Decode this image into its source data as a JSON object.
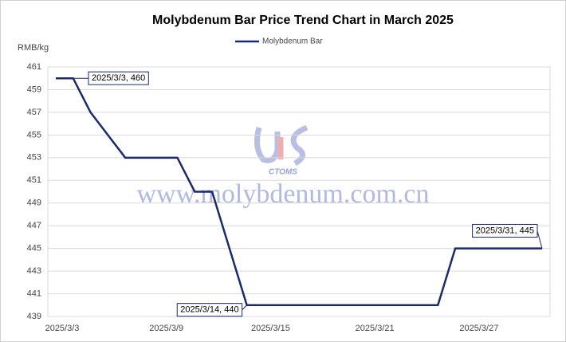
{
  "chart_data": {
    "type": "line",
    "title": "Molybdenum Bar Price Trend Chart in March 2025",
    "y_axis_label": "RMB/kg",
    "watermark": "www.molybdenum.com.cn",
    "logo_text": "CTOMS",
    "categories": [
      "2025/3/3",
      null,
      null,
      null,
      null,
      null,
      "2025/3/9",
      null,
      null,
      null,
      null,
      null,
      "2025/3/15",
      null,
      null,
      null,
      null,
      null,
      "2025/3/21",
      null,
      null,
      null,
      null,
      null,
      "2025/3/27",
      null,
      null,
      null,
      null
    ],
    "series": [
      {
        "name": "Molybdenum Bar",
        "color": "#1b2a6b",
        "values": [
          460,
          460,
          457,
          455,
          453,
          453,
          453,
          453,
          450,
          450,
          445,
          440,
          440,
          440,
          440,
          440,
          440,
          440,
          440,
          440,
          440,
          440,
          440,
          445,
          445,
          445,
          445,
          445,
          445
        ],
        "value_labels": [
          "2025/3/3, 460",
          null,
          null,
          null,
          null,
          null,
          null,
          null,
          null,
          null,
          null,
          "2025/3/14, 440",
          null,
          null,
          null,
          null,
          null,
          null,
          null,
          null,
          null,
          null,
          null,
          null,
          null,
          null,
          null,
          null,
          "2025/3/31, 445"
        ]
      }
    ],
    "ylim": [
      439,
      461
    ],
    "yticks": [
      439,
      441,
      443,
      445,
      447,
      449,
      451,
      453,
      455,
      457,
      459,
      461
    ],
    "grid": true,
    "legend": "top"
  }
}
